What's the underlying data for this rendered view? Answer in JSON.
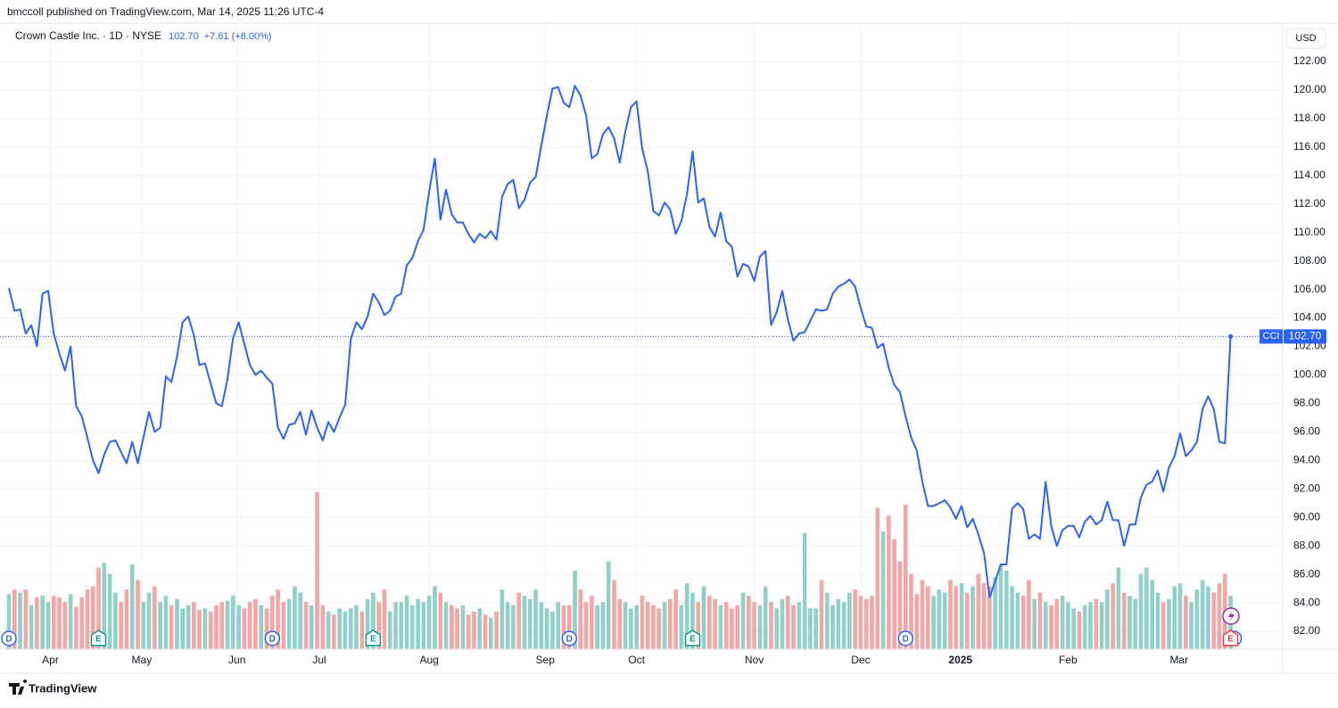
{
  "header": "bmccoll published on TradingView.com, Mar 14, 2025 11:26 UTC-4",
  "footer": "TradingView",
  "chart_data": {
    "type": "line",
    "title": "Crown Castle Inc. · 1D · NYSE",
    "last_price": {
      "value": 102.7,
      "label": "102.70"
    },
    "change": "+7.61 (+8.00%)",
    "currency": "USD",
    "series": [
      {
        "name": "CCI",
        "color": "#2962ff",
        "values": [
          106.1,
          104.5,
          104.6,
          102.9,
          103.5,
          102.0,
          105.7,
          105.9,
          102.9,
          101.5,
          100.3,
          102.0,
          97.8,
          97.1,
          95.6,
          94.0,
          93.1,
          94.4,
          95.3,
          95.4,
          94.6,
          93.8,
          95.3,
          93.8,
          95.6,
          97.4,
          96.0,
          96.3,
          99.9,
          99.5,
          101.3,
          103.7,
          104.1,
          102.8,
          100.7,
          100.8,
          99.4,
          98.0,
          97.8,
          99.7,
          102.6,
          103.7,
          102.2,
          100.7,
          100.0,
          100.3,
          99.8,
          99.4,
          96.3,
          95.5,
          96.5,
          96.6,
          97.4,
          95.8,
          97.5,
          96.3,
          95.4,
          96.7,
          96.0,
          97.0,
          97.9,
          102.5,
          103.7,
          103.2,
          104.1,
          105.7,
          105.1,
          104.2,
          104.5,
          105.5,
          105.7,
          107.7,
          108.2,
          109.4,
          110.2,
          112.9,
          115.2,
          110.9,
          113.0,
          111.3,
          110.7,
          110.7,
          109.9,
          109.3,
          109.9,
          109.6,
          110.1,
          109.5,
          112.5,
          113.4,
          113.7,
          111.7,
          112.3,
          113.5,
          113.9,
          116.1,
          118.2,
          120.1,
          120.2,
          119.1,
          118.8,
          120.3,
          119.6,
          118.2,
          115.2,
          115.5,
          116.9,
          117.4,
          116.6,
          114.9,
          117.1,
          118.8,
          119.2,
          115.9,
          114.3,
          111.5,
          111.2,
          112.1,
          111.6,
          109.9,
          110.8,
          112.7,
          115.7,
          112.1,
          112.4,
          110.4,
          109.7,
          111.4,
          109.4,
          109.0,
          106.9,
          107.8,
          107.6,
          106.6,
          108.3,
          108.7,
          103.5,
          104.4,
          105.9,
          103.9,
          102.4,
          102.9,
          103.0,
          103.8,
          104.6,
          104.5,
          104.6,
          105.7,
          106.2,
          106.4,
          106.7,
          106.2,
          104.7,
          103.4,
          103.3,
          101.9,
          102.2,
          100.5,
          99.3,
          98.8,
          97.1,
          95.6,
          94.7,
          92.5,
          90.8,
          90.8,
          91.0,
          91.2,
          90.7,
          89.9,
          90.8,
          89.3,
          89.9,
          88.8,
          87.5,
          84.4,
          85.5,
          86.7,
          86.7,
          90.6,
          91.0,
          90.6,
          88.5,
          88.8,
          88.5,
          92.5,
          89.4,
          88.0,
          89.1,
          89.4,
          89.4,
          88.6,
          89.7,
          90.1,
          89.5,
          89.8,
          91.1,
          89.8,
          89.8,
          88.0,
          89.5,
          89.5,
          91.4,
          92.3,
          92.5,
          93.3,
          91.8,
          93.5,
          94.3,
          95.9,
          94.3,
          94.7,
          95.3,
          97.6,
          98.5,
          97.6,
          95.3,
          95.2,
          102.7
        ]
      }
    ],
    "volume": {
      "up_color": "#8fd0c8",
      "down_color": "#f5a5a3",
      "values": [
        35,
        38,
        36,
        38,
        28,
        33,
        34,
        30,
        34,
        33,
        30,
        35,
        27,
        33,
        38,
        40,
        52,
        55,
        48,
        36,
        30,
        38,
        54,
        44,
        30,
        36,
        40,
        30,
        34,
        28,
        32,
        26,
        28,
        30,
        25,
        26,
        24,
        28,
        30,
        31,
        34,
        28,
        26,
        30,
        32,
        28,
        26,
        34,
        38,
        30,
        32,
        40,
        36,
        30,
        28,
        100,
        28,
        24,
        22,
        26,
        24,
        26,
        28,
        24,
        32,
        36,
        30,
        38,
        24,
        30,
        30,
        34,
        28,
        32,
        30,
        34,
        40,
        36,
        30,
        28,
        26,
        28,
        22,
        24,
        26,
        22,
        20,
        24,
        38,
        30,
        28,
        36,
        34,
        32,
        38,
        30,
        26,
        24,
        30,
        28,
        28,
        50,
        38,
        30,
        34,
        28,
        30,
        56,
        44,
        32,
        30,
        26,
        28,
        34,
        30,
        28,
        26,
        30,
        32,
        38,
        28,
        42,
        36,
        30,
        40,
        34,
        32,
        28,
        30,
        26,
        28,
        36,
        34,
        30,
        28,
        40,
        30,
        26,
        32,
        34,
        28,
        30,
        74,
        26,
        26,
        44,
        36,
        28,
        32,
        30,
        36,
        38,
        34,
        32,
        34,
        90,
        75,
        85,
        70,
        56,
        92,
        48,
        35,
        44,
        40,
        34,
        38,
        36,
        44,
        40,
        42,
        36,
        40,
        48,
        42,
        40,
        46,
        54,
        50,
        40,
        36,
        34,
        44,
        32,
        36,
        30,
        28,
        32,
        34,
        30,
        26,
        24,
        28,
        30,
        32,
        30,
        38,
        42,
        52,
        36,
        34,
        32,
        48,
        52,
        44,
        36,
        30,
        32,
        40,
        42,
        34,
        30,
        38,
        44,
        40,
        36,
        42,
        48,
        34
      ]
    },
    "events": [
      {
        "x": 0,
        "label": "D",
        "color": "#2962ff"
      },
      {
        "x": 16,
        "label": "E",
        "color": "#089981"
      },
      {
        "x": 47,
        "label": "D",
        "color": "#2962ff"
      },
      {
        "x": 65,
        "label": "E",
        "color": "#089981"
      },
      {
        "x": 100,
        "label": "D",
        "color": "#2962ff"
      },
      {
        "x": 122,
        "label": "E",
        "color": "#089981"
      },
      {
        "x": 160,
        "label": "D",
        "color": "#2962ff"
      },
      {
        "x": 218,
        "label": "D",
        "color": "#2962ff"
      },
      {
        "x": 218,
        "label": "E",
        "color": "#f23645"
      }
    ],
    "xlim": [
      0,
      227.3
    ],
    "xticks": [
      {
        "value": 7.4,
        "label": "Apr"
      },
      {
        "value": 23.7,
        "label": "May"
      },
      {
        "value": 40.7,
        "label": "Jun"
      },
      {
        "value": 55.4,
        "label": "Jul"
      },
      {
        "value": 75,
        "label": "Aug"
      },
      {
        "value": 95.7,
        "label": "Sep"
      },
      {
        "value": 112,
        "label": "Oct"
      },
      {
        "value": 133,
        "label": "Nov"
      },
      {
        "value": 152,
        "label": "Dec"
      },
      {
        "value": 169.8,
        "label": "2025"
      },
      {
        "value": 189,
        "label": "Feb"
      },
      {
        "value": 208.8,
        "label": "Mar"
      }
    ],
    "ylim": [
      80.75,
      124.63
    ],
    "yticks": [
      {
        "value": 82,
        "label": "82.00"
      },
      {
        "value": 84,
        "label": "84.00"
      },
      {
        "value": 86,
        "label": "86.00"
      },
      {
        "value": 88,
        "label": "88.00"
      },
      {
        "value": 90,
        "label": "90.00"
      },
      {
        "value": 92,
        "label": "92.00"
      },
      {
        "value": 94,
        "label": "94.00"
      },
      {
        "value": 96,
        "label": "96.00"
      },
      {
        "value": 98,
        "label": "98.00"
      },
      {
        "value": 100,
        "label": "100.00"
      },
      {
        "value": 102,
        "label": "102.00"
      },
      {
        "value": 104,
        "label": "104.00"
      },
      {
        "value": 106,
        "label": "106.00"
      },
      {
        "value": 108,
        "label": "108.00"
      },
      {
        "value": 110,
        "label": "110.00"
      },
      {
        "value": 112,
        "label": "112.00"
      },
      {
        "value": 114,
        "label": "114.00"
      },
      {
        "value": 116,
        "label": "116.00"
      },
      {
        "value": 118,
        "label": "118.00"
      },
      {
        "value": 120,
        "label": "120.00"
      },
      {
        "value": 122,
        "label": "122.00"
      }
    ],
    "grid": true
  }
}
